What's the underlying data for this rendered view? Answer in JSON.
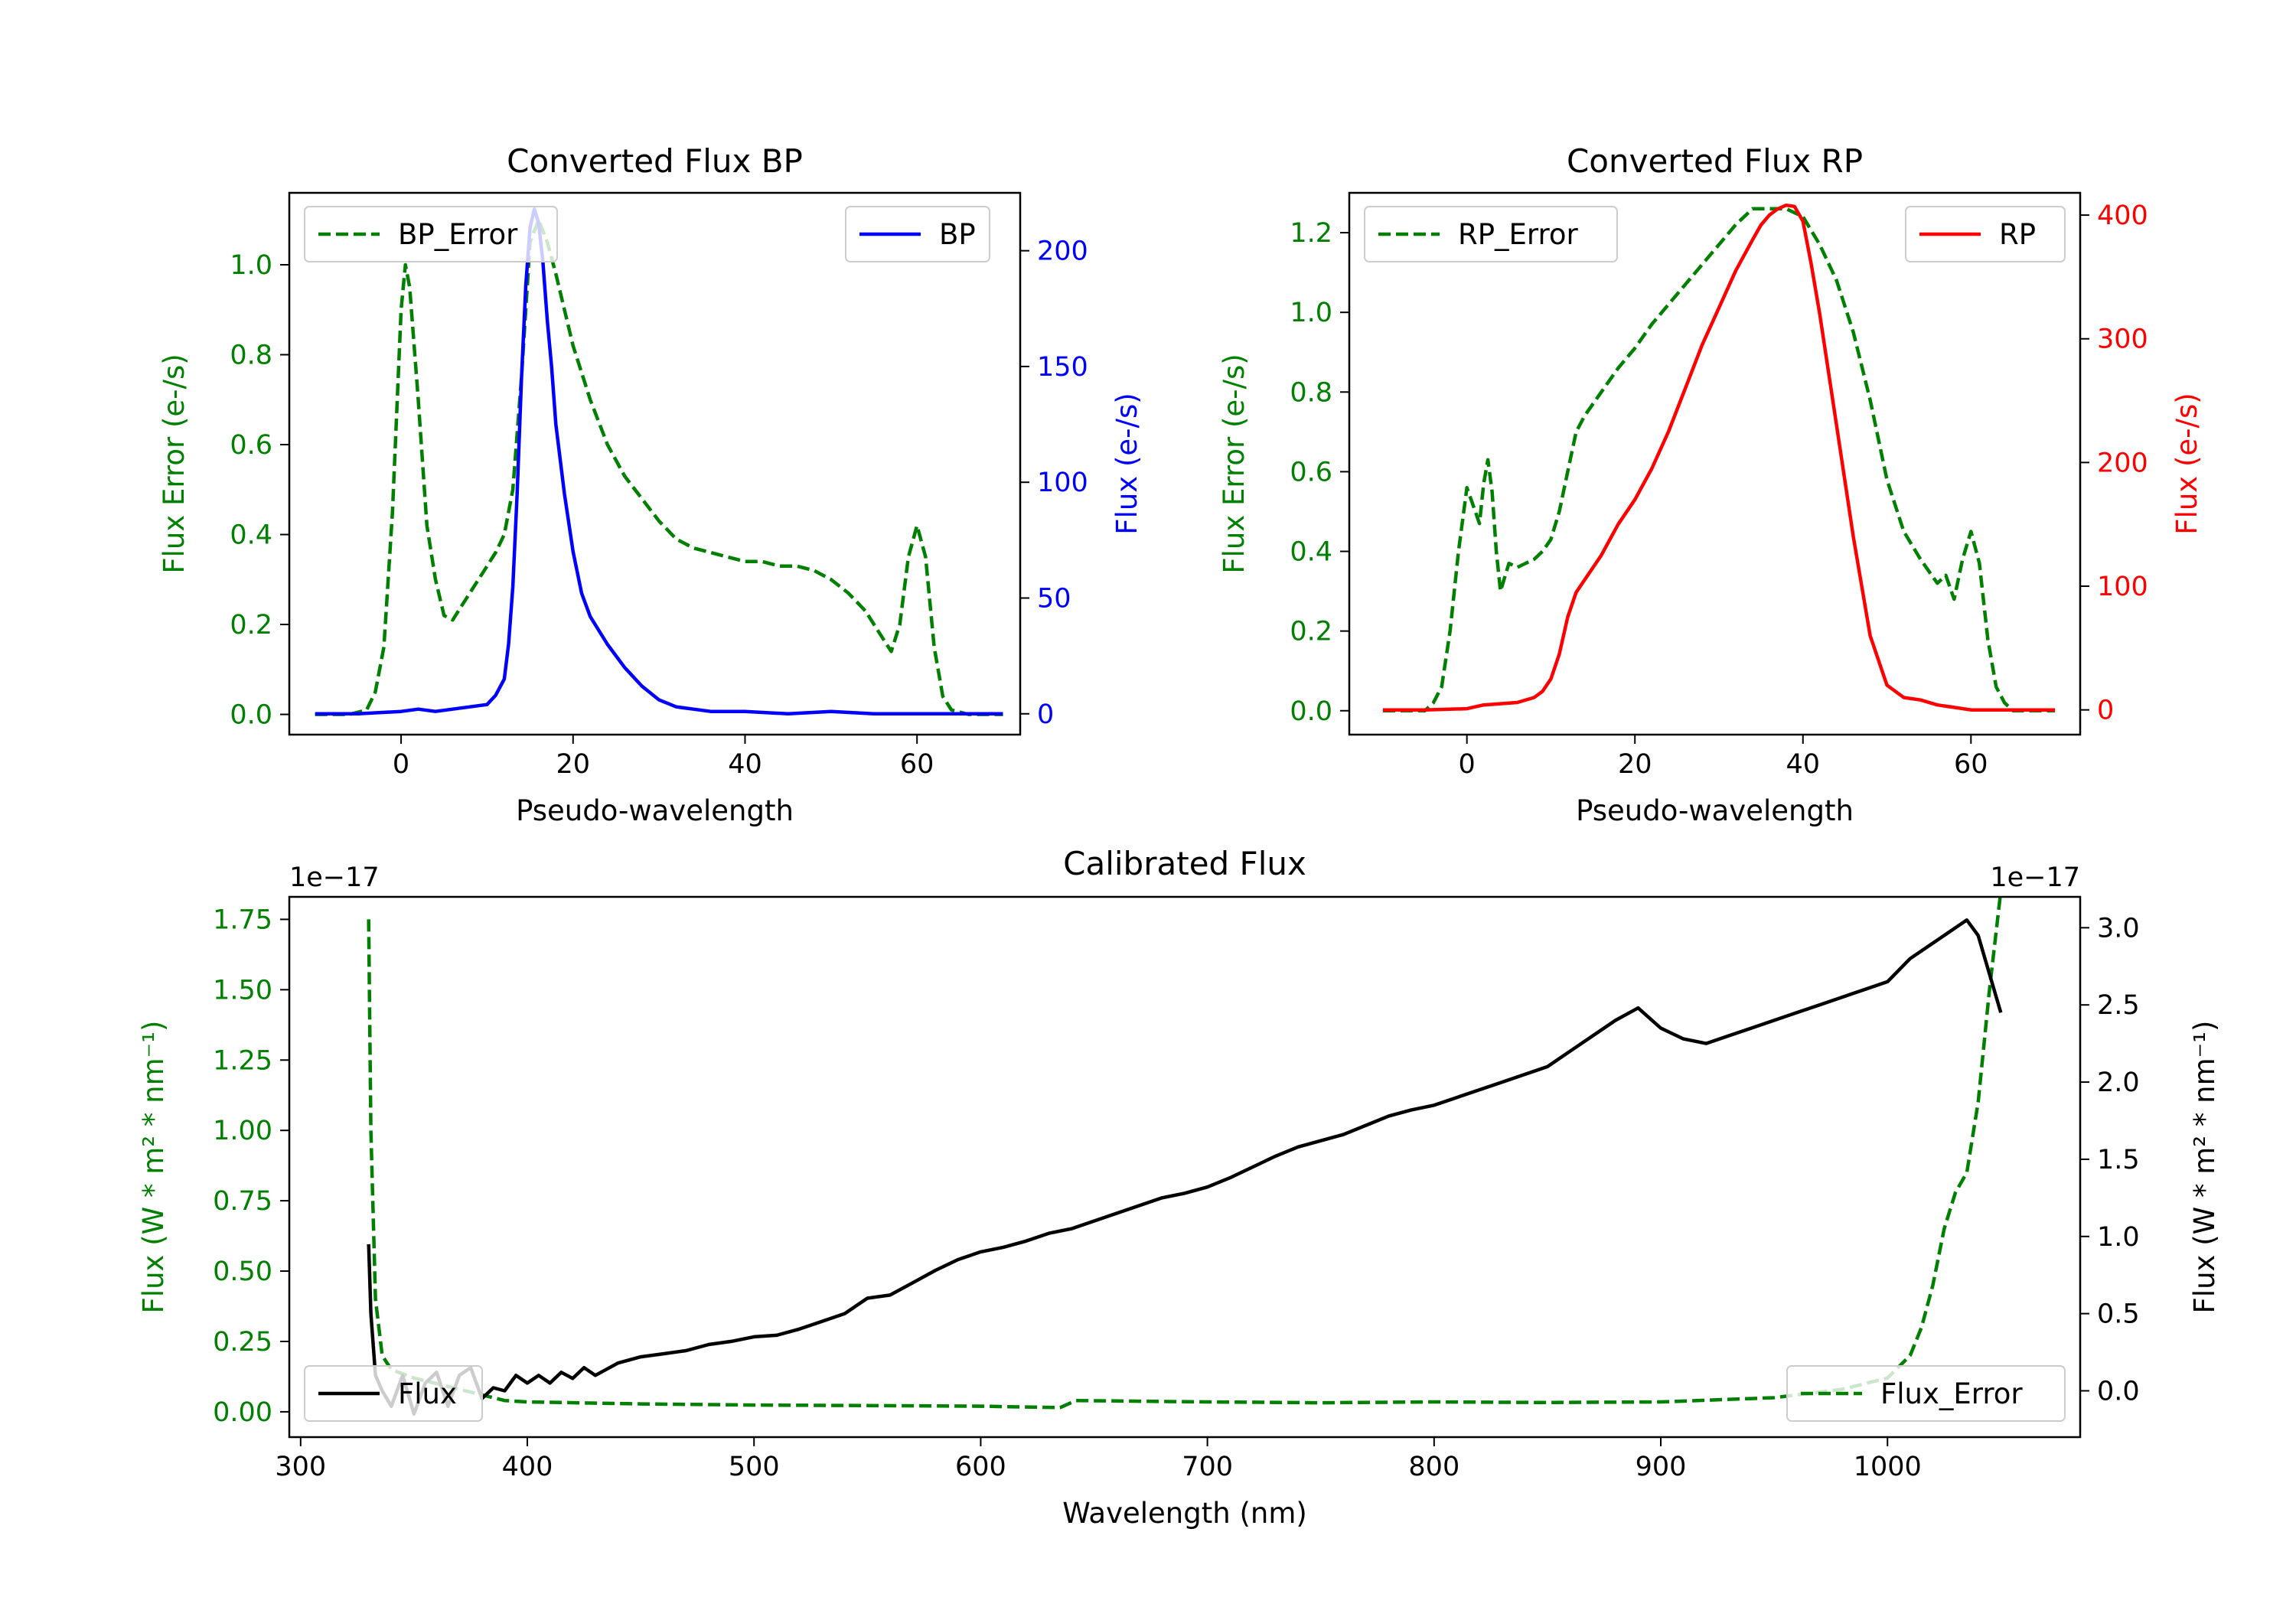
{
  "colors": {
    "green": "#008000",
    "blue": "#0000ff",
    "red": "#ff0000",
    "black": "#000000"
  },
  "chart_data": [
    {
      "type": "line",
      "title": "Converted Flux BP",
      "xlabel": "Pseudo-wavelength",
      "ylabel_left": "Flux Error (e-/s)",
      "ylabel_right": "Flux (e-/s)",
      "xlim": [
        -13,
        72
      ],
      "ylim_left": [
        -0.045,
        1.16
      ],
      "ylim_right": [
        -9,
        225
      ],
      "xticks": [
        0,
        20,
        40,
        60
      ],
      "yticks_left": [
        0.0,
        0.2,
        0.4,
        0.6,
        0.8,
        1.0
      ],
      "yticks_left_labels": [
        "0.0",
        "0.2",
        "0.4",
        "0.6",
        "0.8",
        "1.0"
      ],
      "yticks_right": [
        0,
        50,
        100,
        150,
        200
      ],
      "yticks_right_labels": [
        "0",
        "50",
        "100",
        "150",
        "200"
      ],
      "legend": {
        "left": "BP_Error",
        "right": "BP"
      },
      "series": [
        {
          "name": "BP_Error",
          "axis": "left",
          "color": "#008000",
          "style": "dashed",
          "x": [
            -10,
            -6,
            -4,
            -3,
            -2,
            -1,
            0,
            0.5,
            1,
            2,
            3,
            4,
            5,
            6,
            7,
            8,
            9,
            10,
            11,
            12,
            13,
            14,
            15,
            16,
            17,
            18,
            19,
            20,
            22,
            24,
            26,
            28,
            30,
            32,
            34,
            36,
            38,
            40,
            42,
            44,
            46,
            48,
            50,
            52,
            54,
            56,
            57,
            58,
            59,
            60,
            61,
            62,
            63,
            64,
            66,
            68,
            70
          ],
          "y": [
            0.0,
            0.0,
            0.01,
            0.05,
            0.15,
            0.45,
            0.9,
            1.0,
            0.95,
            0.7,
            0.42,
            0.3,
            0.22,
            0.21,
            0.24,
            0.27,
            0.3,
            0.33,
            0.36,
            0.4,
            0.5,
            0.75,
            1.05,
            1.1,
            1.05,
            0.98,
            0.9,
            0.82,
            0.7,
            0.6,
            0.53,
            0.48,
            0.43,
            0.39,
            0.37,
            0.36,
            0.35,
            0.34,
            0.34,
            0.33,
            0.33,
            0.32,
            0.3,
            0.27,
            0.23,
            0.17,
            0.14,
            0.2,
            0.35,
            0.42,
            0.35,
            0.15,
            0.04,
            0.01,
            0.0,
            0.0,
            0.0
          ]
        },
        {
          "name": "BP",
          "axis": "right",
          "color": "#0000ff",
          "style": "solid",
          "x": [
            -10,
            -5,
            0,
            2,
            4,
            6,
            8,
            10,
            11,
            12,
            12.5,
            13,
            13.5,
            14,
            14.5,
            15,
            15.5,
            16,
            16.5,
            17,
            17.5,
            18,
            19,
            20,
            21,
            22,
            24,
            26,
            28,
            30,
            32,
            34,
            36,
            40,
            45,
            50,
            55,
            60,
            65,
            70
          ],
          "y": [
            0,
            0,
            1,
            2,
            1,
            2,
            3,
            4,
            8,
            15,
            30,
            55,
            95,
            145,
            185,
            210,
            218,
            212,
            195,
            170,
            150,
            125,
            95,
            70,
            52,
            42,
            30,
            20,
            12,
            6,
            3,
            2,
            1,
            1,
            0,
            1,
            0,
            0,
            0,
            0
          ]
        }
      ]
    },
    {
      "type": "line",
      "title": "Converted Flux RP",
      "xlabel": "Pseudo-wavelength",
      "ylabel_left": "Flux Error (e-/s)",
      "ylabel_right": "Flux (e-/s)",
      "xlim": [
        -14,
        73
      ],
      "ylim_left": [
        -0.06,
        1.3
      ],
      "ylim_right": [
        -20,
        418
      ],
      "xticks": [
        0,
        20,
        40,
        60
      ],
      "yticks_left": [
        0.0,
        0.2,
        0.4,
        0.6,
        0.8,
        1.0,
        1.2
      ],
      "yticks_left_labels": [
        "0.0",
        "0.2",
        "0.4",
        "0.6",
        "0.8",
        "1.0",
        "1.2"
      ],
      "yticks_right": [
        0,
        100,
        200,
        300,
        400
      ],
      "yticks_right_labels": [
        "0",
        "100",
        "200",
        "300",
        "400"
      ],
      "legend": {
        "left": "RP_Error",
        "right": "RP"
      },
      "series": [
        {
          "name": "RP_Error",
          "axis": "left",
          "color": "#008000",
          "style": "dashed",
          "x": [
            -10,
            -5,
            -4,
            -3,
            -2,
            -1,
            0,
            1,
            1.5,
            2,
            2.5,
            3,
            3.5,
            4,
            5,
            6,
            7,
            8,
            9,
            10,
            11,
            12,
            13,
            14,
            16,
            18,
            20,
            22,
            24,
            26,
            28,
            30,
            32,
            34,
            36,
            38,
            40,
            42,
            44,
            46,
            48,
            50,
            52,
            54,
            55,
            56,
            57,
            58,
            59,
            60,
            61,
            62,
            63,
            64,
            65,
            70
          ],
          "y": [
            0.0,
            0.0,
            0.02,
            0.06,
            0.2,
            0.4,
            0.56,
            0.5,
            0.47,
            0.57,
            0.63,
            0.55,
            0.4,
            0.3,
            0.37,
            0.36,
            0.37,
            0.38,
            0.4,
            0.43,
            0.5,
            0.6,
            0.7,
            0.74,
            0.8,
            0.86,
            0.91,
            0.97,
            1.02,
            1.07,
            1.12,
            1.17,
            1.22,
            1.26,
            1.26,
            1.26,
            1.24,
            1.17,
            1.08,
            0.95,
            0.78,
            0.58,
            0.45,
            0.38,
            0.35,
            0.32,
            0.34,
            0.28,
            0.38,
            0.45,
            0.37,
            0.18,
            0.06,
            0.02,
            0.0,
            0.0
          ]
        },
        {
          "name": "RP",
          "axis": "right",
          "color": "#ff0000",
          "style": "solid",
          "x": [
            -10,
            -5,
            0,
            2,
            4,
            6,
            8,
            9,
            10,
            11,
            12,
            13,
            14,
            16,
            18,
            20,
            22,
            24,
            26,
            28,
            30,
            32,
            34,
            35,
            36,
            37,
            38,
            39,
            40,
            41,
            42,
            44,
            46,
            48,
            50,
            52,
            54,
            56,
            58,
            60,
            65,
            70
          ],
          "y": [
            0,
            0,
            1,
            4,
            5,
            6,
            10,
            15,
            25,
            45,
            75,
            95,
            105,
            125,
            150,
            170,
            195,
            225,
            260,
            295,
            325,
            355,
            380,
            392,
            400,
            405,
            408,
            407,
            395,
            360,
            320,
            230,
            140,
            60,
            20,
            10,
            8,
            4,
            2,
            0,
            0,
            0
          ]
        }
      ]
    },
    {
      "type": "line",
      "title": "Calibrated Flux",
      "xlabel": "Wavelength (nm)",
      "ylabel_left": "Flux (W * m² * nm⁻¹)",
      "ylabel_right": "Flux (W * m² * nm⁻¹)",
      "offset_left": "1e−17",
      "offset_right": "1e−17",
      "xlim": [
        295,
        1085
      ],
      "ylim_left": [
        -0.09,
        1.83
      ],
      "ylim_right": [
        -0.3,
        3.2
      ],
      "xticks": [
        300,
        400,
        500,
        600,
        700,
        800,
        900,
        1000
      ],
      "yticks_left": [
        0.0,
        0.25,
        0.5,
        0.75,
        1.0,
        1.25,
        1.5,
        1.75
      ],
      "yticks_left_labels": [
        "0.00",
        "0.25",
        "0.50",
        "0.75",
        "1.00",
        "1.25",
        "1.50",
        "1.75"
      ],
      "yticks_right": [
        0.0,
        0.5,
        1.0,
        1.5,
        2.0,
        2.5,
        3.0
      ],
      "yticks_right_labels": [
        "0.0",
        "0.5",
        "1.0",
        "1.5",
        "2.0",
        "2.5",
        "3.0"
      ],
      "legend": {
        "left": "Flux",
        "right": "Flux_Error"
      },
      "series": [
        {
          "name": "Flux_Error",
          "axis": "left",
          "color": "#008000",
          "style": "dashed",
          "x": [
            330,
            331,
            333,
            336,
            340,
            350,
            360,
            370,
            380,
            390,
            400,
            450,
            500,
            550,
            600,
            635,
            642,
            700,
            750,
            800,
            850,
            900,
            950,
            980,
            1000,
            1010,
            1015,
            1020,
            1025,
            1030,
            1035,
            1040,
            1045,
            1050
          ],
          "y": [
            1.75,
            1.0,
            0.4,
            0.2,
            0.15,
            0.12,
            0.1,
            0.08,
            0.06,
            0.04,
            0.035,
            0.028,
            0.024,
            0.022,
            0.02,
            0.015,
            0.04,
            0.035,
            0.032,
            0.035,
            0.033,
            0.035,
            0.05,
            0.08,
            0.12,
            0.2,
            0.3,
            0.45,
            0.65,
            0.78,
            0.85,
            1.1,
            1.5,
            1.85
          ]
        },
        {
          "name": "Flux",
          "axis": "right",
          "color": "#000000",
          "style": "solid",
          "x": [
            330,
            331,
            333,
            336,
            340,
            345,
            350,
            355,
            360,
            365,
            370,
            375,
            380,
            385,
            390,
            395,
            400,
            405,
            410,
            415,
            420,
            425,
            430,
            440,
            450,
            460,
            470,
            480,
            490,
            500,
            510,
            520,
            530,
            540,
            550,
            560,
            570,
            580,
            590,
            600,
            610,
            620,
            630,
            640,
            650,
            660,
            670,
            680,
            690,
            700,
            710,
            720,
            730,
            740,
            750,
            760,
            770,
            780,
            790,
            800,
            810,
            820,
            830,
            840,
            850,
            860,
            870,
            880,
            890,
            900,
            910,
            920,
            930,
            940,
            950,
            960,
            970,
            980,
            990,
            1000,
            1010,
            1020,
            1030,
            1035,
            1040,
            1045,
            1050
          ],
          "y": [
            0.95,
            0.5,
            0.1,
            0.0,
            -0.1,
            0.1,
            -0.15,
            0.05,
            0.12,
            -0.1,
            0.1,
            0.15,
            -0.05,
            0.02,
            0.0,
            0.1,
            0.05,
            0.1,
            0.05,
            0.12,
            0.08,
            0.15,
            0.1,
            0.18,
            0.22,
            0.24,
            0.26,
            0.3,
            0.32,
            0.35,
            0.36,
            0.4,
            0.45,
            0.5,
            0.6,
            0.62,
            0.7,
            0.78,
            0.85,
            0.9,
            0.93,
            0.97,
            1.02,
            1.05,
            1.1,
            1.15,
            1.2,
            1.25,
            1.28,
            1.32,
            1.38,
            1.45,
            1.52,
            1.58,
            1.62,
            1.66,
            1.72,
            1.78,
            1.82,
            1.85,
            1.9,
            1.95,
            2.0,
            2.05,
            2.1,
            2.2,
            2.3,
            2.4,
            2.48,
            2.35,
            2.28,
            2.25,
            2.3,
            2.35,
            2.4,
            2.45,
            2.5,
            2.55,
            2.6,
            2.65,
            2.8,
            2.9,
            3.0,
            3.05,
            2.95,
            2.7,
            2.45
          ]
        }
      ]
    }
  ]
}
